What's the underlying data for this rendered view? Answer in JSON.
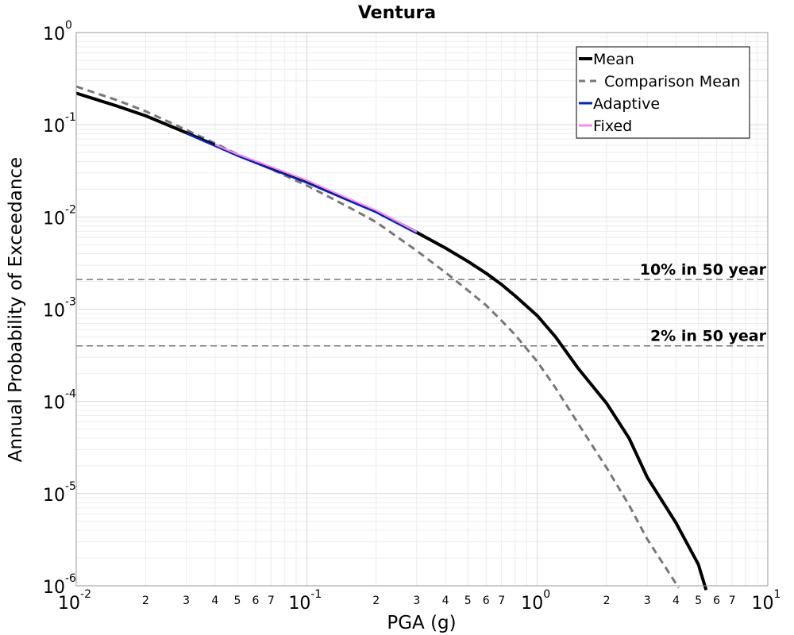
{
  "chart_data": {
    "type": "line",
    "title": "Ventura",
    "xlabel": "PGA (g)",
    "ylabel": "Annual Probability of Exceedance",
    "x_scale": "log",
    "y_scale": "log",
    "xlim": [
      0.01,
      10
    ],
    "ylim": [
      1e-06,
      1
    ],
    "grid": true,
    "legend_position": "top-right",
    "x_major_ticks": [
      {
        "base": "10",
        "exp": "-2",
        "value": 0.01
      },
      {
        "base": "10",
        "exp": "-1",
        "value": 0.1
      },
      {
        "base": "10",
        "exp": "0",
        "value": 1
      },
      {
        "base": "10",
        "exp": "1",
        "value": 10
      }
    ],
    "y_major_ticks": [
      {
        "base": "10",
        "exp": "0",
        "value": 1
      },
      {
        "base": "10",
        "exp": "-1",
        "value": 0.1
      },
      {
        "base": "10",
        "exp": "-2",
        "value": 0.01
      },
      {
        "base": "10",
        "exp": "-3",
        "value": 0.001
      },
      {
        "base": "10",
        "exp": "-4",
        "value": 0.0001
      },
      {
        "base": "10",
        "exp": "-5",
        "value": 1e-05
      },
      {
        "base": "10",
        "exp": "-6",
        "value": 1e-06
      }
    ],
    "x_minor_tick_labels": [
      "2",
      "3",
      "4",
      "5",
      "6",
      "7"
    ],
    "series": [
      {
        "name": "Mean",
        "color": "#000000",
        "dash": "solid",
        "x": [
          0.01,
          0.015,
          0.02,
          0.03,
          0.04,
          0.05,
          0.07,
          0.1,
          0.15,
          0.2,
          0.3,
          0.4,
          0.5,
          0.6,
          0.7,
          0.8,
          1.0,
          1.2,
          1.5,
          2.0,
          2.5,
          3.0,
          4.0,
          5.0,
          5.4
        ],
        "y": [
          0.22,
          0.16,
          0.125,
          0.082,
          0.06,
          0.047,
          0.034,
          0.024,
          0.0155,
          0.0115,
          0.0068,
          0.0046,
          0.0033,
          0.00245,
          0.00185,
          0.0014,
          0.00085,
          0.0005,
          0.00023,
          9.5e-05,
          4e-05,
          1.5e-05,
          4.8e-06,
          1.7e-06,
          9e-07
        ]
      },
      {
        "name": "Comparison Mean",
        "color": "#777777",
        "dash": "dashed",
        "x": [
          0.01,
          0.015,
          0.02,
          0.03,
          0.04,
          0.05,
          0.07,
          0.1,
          0.15,
          0.2,
          0.3,
          0.4,
          0.5,
          0.6,
          0.7,
          0.8,
          1.0,
          1.2,
          1.5,
          2.0,
          2.5,
          3.0,
          4.0,
          4.1
        ],
        "y": [
          0.26,
          0.185,
          0.14,
          0.088,
          0.063,
          0.048,
          0.033,
          0.022,
          0.013,
          0.0088,
          0.0043,
          0.0025,
          0.0016,
          0.0011,
          0.00075,
          0.00053,
          0.00027,
          0.00014,
          5.8e-05,
          1.9e-05,
          7.5e-06,
          3.2e-06,
          1.05e-06,
          9.5e-07
        ]
      },
      {
        "name": "Adaptive",
        "color": "#0022cc",
        "dash": "solid",
        "x": [
          0.03,
          0.04,
          0.05,
          0.07,
          0.1,
          0.15,
          0.2,
          0.3
        ],
        "y": [
          0.081,
          0.059,
          0.046,
          0.033,
          0.0235,
          0.0152,
          0.0112,
          0.0066
        ]
      },
      {
        "name": "Fixed",
        "color": "#ff88ee",
        "dash": "solid",
        "x": [
          0.04,
          0.05,
          0.07,
          0.1,
          0.15,
          0.2,
          0.3
        ],
        "y": [
          0.061,
          0.048,
          0.035,
          0.025,
          0.016,
          0.0118,
          0.0069
        ]
      }
    ],
    "reference_lines": [
      {
        "label": "10% in 50 year",
        "y": 0.0021,
        "color": "#777777"
      },
      {
        "label": "2% in 50 year",
        "y": 0.0004,
        "color": "#777777"
      }
    ]
  }
}
